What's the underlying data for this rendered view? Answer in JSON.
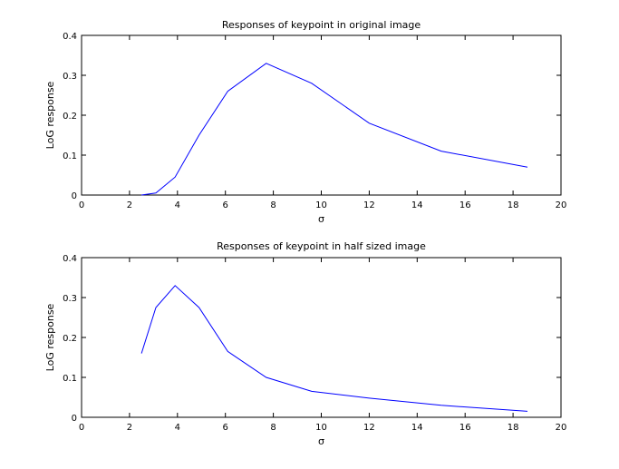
{
  "chart_data": [
    {
      "type": "line",
      "title": "Responses of keypoint in original image",
      "xlabel": "σ",
      "ylabel": "LoG response",
      "xlim": [
        0,
        20
      ],
      "ylim": [
        0,
        0.4
      ],
      "x_ticks": [
        0,
        2,
        4,
        6,
        8,
        10,
        12,
        14,
        16,
        18,
        20
      ],
      "y_ticks": [
        0,
        0.1,
        0.2,
        0.3,
        0.4
      ],
      "x_tick_labels": [
        "0",
        "2",
        "4",
        "6",
        "8",
        "10",
        "12",
        "14",
        "16",
        "18",
        "20"
      ],
      "y_tick_labels": [
        "0",
        "0.1",
        "0.2",
        "0.3",
        "0.4"
      ],
      "grid": false,
      "color": "#0000ff",
      "series": [
        {
          "x": [
            2.5,
            3.1,
            3.9,
            4.9,
            6.1,
            7.7,
            9.6,
            12.0,
            15.0,
            18.6
          ],
          "y": [
            0.0,
            0.005,
            0.045,
            0.15,
            0.26,
            0.33,
            0.28,
            0.18,
            0.11,
            0.07
          ]
        }
      ]
    },
    {
      "type": "line",
      "title": "Responses of keypoint in half sized image",
      "xlabel": "σ",
      "ylabel": "LoG response",
      "xlim": [
        0,
        20
      ],
      "ylim": [
        0,
        0.4
      ],
      "x_ticks": [
        0,
        2,
        4,
        6,
        8,
        10,
        12,
        14,
        16,
        18,
        20
      ],
      "y_ticks": [
        0,
        0.1,
        0.2,
        0.3,
        0.4
      ],
      "x_tick_labels": [
        "0",
        "2",
        "4",
        "6",
        "8",
        "10",
        "12",
        "14",
        "16",
        "18",
        "20"
      ],
      "y_tick_labels": [
        "0",
        "0.1",
        "0.2",
        "0.3",
        "0.4"
      ],
      "grid": false,
      "color": "#0000ff",
      "series": [
        {
          "x": [
            2.5,
            3.1,
            3.9,
            4.9,
            6.1,
            7.7,
            9.6,
            12.0,
            15.0,
            18.6
          ],
          "y": [
            0.16,
            0.275,
            0.33,
            0.275,
            0.165,
            0.1,
            0.065,
            0.048,
            0.03,
            0.015
          ]
        }
      ]
    }
  ]
}
